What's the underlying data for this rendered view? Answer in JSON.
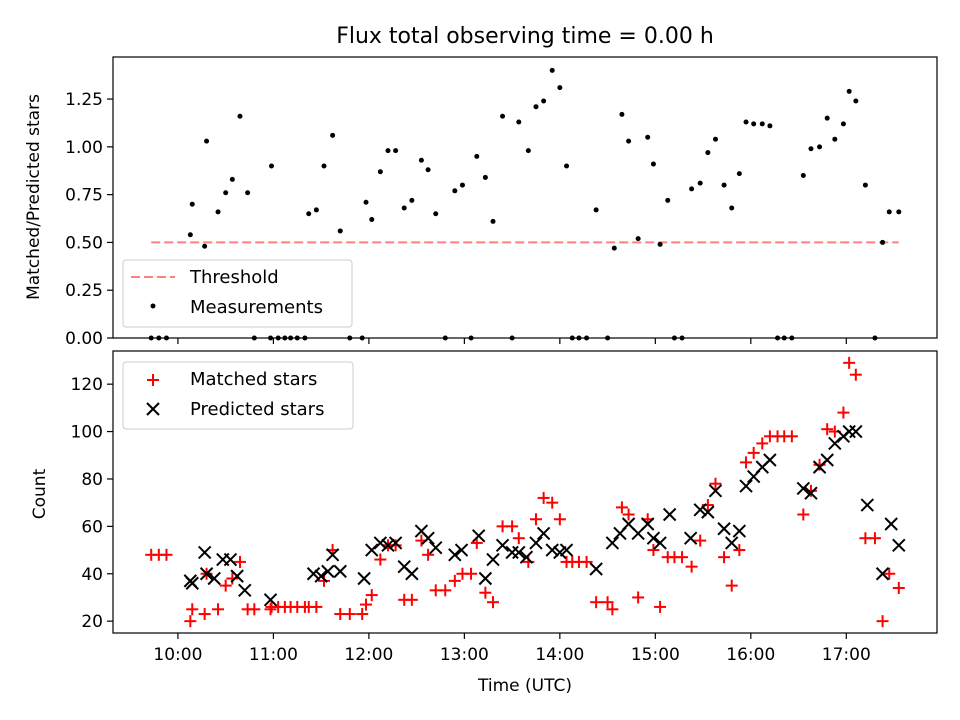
{
  "chart_data": [
    {
      "type": "scatter",
      "title": "Flux total observing time = 0.00 h",
      "ylabel": "Matched/Predicted stars",
      "xlabel": "",
      "x_unit": "hours UTC",
      "xlim": [
        9.32,
        17.95
      ],
      "ylim": [
        0.0,
        1.47
      ],
      "yticks": [
        0.0,
        0.25,
        0.5,
        0.75,
        1.0,
        1.25
      ],
      "ytick_labels": [
        "0.00",
        "0.25",
        "0.50",
        "0.75",
        "1.00",
        "1.25"
      ],
      "grid": false,
      "legend_position": "lower-left",
      "legend": [
        "Threshold",
        "Measurements"
      ],
      "threshold": {
        "name": "Threshold",
        "value": 0.5,
        "x_start": 9.72,
        "x_end": 17.55,
        "color": "#ff7f7f"
      },
      "series": [
        {
          "name": "Measurements",
          "color": "#000000",
          "points": [
            [
              9.72,
              0.0
            ],
            [
              9.8,
              0.0
            ],
            [
              9.88,
              0.0
            ],
            [
              10.13,
              0.54
            ],
            [
              10.15,
              0.7
            ],
            [
              10.28,
              0.48
            ],
            [
              10.3,
              1.03
            ],
            [
              10.42,
              0.66
            ],
            [
              10.5,
              0.76
            ],
            [
              10.57,
              0.83
            ],
            [
              10.65,
              1.16
            ],
            [
              10.73,
              0.76
            ],
            [
              10.8,
              0.0
            ],
            [
              10.97,
              0.0
            ],
            [
              10.98,
              0.9
            ],
            [
              11.05,
              0.0
            ],
            [
              11.12,
              0.0
            ],
            [
              11.18,
              0.0
            ],
            [
              11.25,
              0.0
            ],
            [
              11.33,
              0.0
            ],
            [
              11.37,
              0.65
            ],
            [
              11.45,
              0.67
            ],
            [
              11.53,
              0.9
            ],
            [
              11.62,
              1.06
            ],
            [
              11.7,
              0.56
            ],
            [
              11.8,
              0.0
            ],
            [
              11.93,
              0.0
            ],
            [
              11.97,
              0.71
            ],
            [
              12.03,
              0.62
            ],
            [
              12.12,
              0.87
            ],
            [
              12.2,
              0.98
            ],
            [
              12.28,
              0.98
            ],
            [
              12.37,
              0.68
            ],
            [
              12.45,
              0.72
            ],
            [
              12.55,
              0.93
            ],
            [
              12.62,
              0.88
            ],
            [
              12.7,
              0.65
            ],
            [
              12.8,
              0.0
            ],
            [
              12.9,
              0.77
            ],
            [
              12.98,
              0.8
            ],
            [
              13.07,
              0.0
            ],
            [
              13.13,
              0.95
            ],
            [
              13.22,
              0.84
            ],
            [
              13.3,
              0.61
            ],
            [
              13.4,
              1.16
            ],
            [
              13.5,
              0.0
            ],
            [
              13.57,
              1.13
            ],
            [
              13.67,
              0.98
            ],
            [
              13.75,
              1.21
            ],
            [
              13.83,
              1.24
            ],
            [
              13.92,
              1.4
            ],
            [
              14.0,
              1.31
            ],
            [
              14.07,
              0.9
            ],
            [
              14.13,
              0.0
            ],
            [
              14.2,
              0.0
            ],
            [
              14.28,
              0.0
            ],
            [
              14.38,
              0.67
            ],
            [
              14.5,
              0.0
            ],
            [
              14.57,
              0.47
            ],
            [
              14.65,
              1.17
            ],
            [
              14.72,
              1.03
            ],
            [
              14.82,
              0.52
            ],
            [
              14.92,
              1.05
            ],
            [
              14.98,
              0.91
            ],
            [
              15.05,
              0.49
            ],
            [
              15.13,
              0.72
            ],
            [
              15.2,
              0.0
            ],
            [
              15.28,
              0.0
            ],
            [
              15.38,
              0.78
            ],
            [
              15.47,
              0.81
            ],
            [
              15.55,
              0.97
            ],
            [
              15.63,
              1.04
            ],
            [
              15.72,
              0.8
            ],
            [
              15.8,
              0.68
            ],
            [
              15.88,
              0.86
            ],
            [
              15.95,
              1.13
            ],
            [
              16.03,
              1.12
            ],
            [
              16.12,
              1.12
            ],
            [
              16.2,
              1.11
            ],
            [
              16.28,
              0.0
            ],
            [
              16.35,
              0.0
            ],
            [
              16.43,
              0.0
            ],
            [
              16.55,
              0.85
            ],
            [
              16.63,
              0.99
            ],
            [
              16.72,
              1.0
            ],
            [
              16.8,
              1.15
            ],
            [
              16.88,
              1.04
            ],
            [
              16.97,
              1.12
            ],
            [
              17.03,
              1.29
            ],
            [
              17.1,
              1.24
            ],
            [
              17.2,
              0.8
            ],
            [
              17.3,
              0.0
            ],
            [
              17.38,
              0.5
            ],
            [
              17.45,
              0.66
            ],
            [
              17.55,
              0.66
            ]
          ]
        }
      ]
    },
    {
      "type": "scatter",
      "title": "",
      "xlabel": "Time (UTC)",
      "ylabel": "Count",
      "x_unit": "hours UTC",
      "xlim": [
        9.32,
        17.95
      ],
      "ylim": [
        15,
        134
      ],
      "xticks": [
        10,
        11,
        12,
        13,
        14,
        15,
        16,
        17
      ],
      "xtick_labels": [
        "10:00",
        "11:00",
        "12:00",
        "13:00",
        "14:00",
        "15:00",
        "16:00",
        "17:00"
      ],
      "yticks": [
        20,
        40,
        60,
        80,
        100,
        120
      ],
      "ytick_labels": [
        "20",
        "40",
        "60",
        "80",
        "100",
        "120"
      ],
      "grid": false,
      "legend_position": "upper-left",
      "legend": [
        "Matched stars",
        "Predicted stars"
      ],
      "series": [
        {
          "name": "Matched stars",
          "color": "#ff0000",
          "marker": "plus",
          "points": [
            [
              9.72,
              48
            ],
            [
              9.8,
              48
            ],
            [
              9.88,
              48
            ],
            [
              10.13,
              20
            ],
            [
              10.15,
              25
            ],
            [
              10.28,
              23
            ],
            [
              10.3,
              40
            ],
            [
              10.42,
              25
            ],
            [
              10.5,
              35
            ],
            [
              10.57,
              38
            ],
            [
              10.65,
              45
            ],
            [
              10.73,
              25
            ],
            [
              10.8,
              25
            ],
            [
              10.97,
              25
            ],
            [
              10.98,
              26
            ],
            [
              11.05,
              26
            ],
            [
              11.12,
              26
            ],
            [
              11.18,
              26
            ],
            [
              11.25,
              26
            ],
            [
              11.33,
              26
            ],
            [
              11.37,
              26
            ],
            [
              11.45,
              26
            ],
            [
              11.53,
              37
            ],
            [
              11.62,
              50
            ],
            [
              11.7,
              23
            ],
            [
              11.8,
              23
            ],
            [
              11.93,
              23
            ],
            [
              11.97,
              27
            ],
            [
              12.03,
              31
            ],
            [
              12.12,
              46
            ],
            [
              12.2,
              52
            ],
            [
              12.28,
              52
            ],
            [
              12.37,
              29
            ],
            [
              12.45,
              29
            ],
            [
              12.55,
              54
            ],
            [
              12.62,
              48
            ],
            [
              12.7,
              33
            ],
            [
              12.8,
              33
            ],
            [
              12.9,
              37
            ],
            [
              12.98,
              40
            ],
            [
              13.07,
              40
            ],
            [
              13.13,
              53
            ],
            [
              13.22,
              32
            ],
            [
              13.3,
              28
            ],
            [
              13.4,
              60
            ],
            [
              13.5,
              60
            ],
            [
              13.57,
              55
            ],
            [
              13.67,
              45
            ],
            [
              13.75,
              63
            ],
            [
              13.83,
              72
            ],
            [
              13.92,
              70
            ],
            [
              14.0,
              63
            ],
            [
              14.07,
              45
            ],
            [
              14.13,
              45
            ],
            [
              14.2,
              45
            ],
            [
              14.28,
              45
            ],
            [
              14.38,
              28
            ],
            [
              14.5,
              28
            ],
            [
              14.55,
              25
            ],
            [
              14.65,
              68
            ],
            [
              14.72,
              65
            ],
            [
              14.82,
              30
            ],
            [
              14.92,
              63
            ],
            [
              14.98,
              50
            ],
            [
              15.05,
              26
            ],
            [
              15.13,
              47
            ],
            [
              15.2,
              47
            ],
            [
              15.28,
              47
            ],
            [
              15.38,
              43
            ],
            [
              15.47,
              54
            ],
            [
              15.55,
              69
            ],
            [
              15.63,
              78
            ],
            [
              15.72,
              47
            ],
            [
              15.8,
              35
            ],
            [
              15.88,
              50
            ],
            [
              15.95,
              87
            ],
            [
              16.03,
              91
            ],
            [
              16.12,
              95
            ],
            [
              16.2,
              98
            ],
            [
              16.28,
              98
            ],
            [
              16.35,
              98
            ],
            [
              16.43,
              98
            ],
            [
              16.55,
              65
            ],
            [
              16.63,
              75
            ],
            [
              16.72,
              86
            ],
            [
              16.8,
              101
            ],
            [
              16.88,
              100
            ],
            [
              16.97,
              108
            ],
            [
              17.03,
              129
            ],
            [
              17.1,
              124
            ],
            [
              17.2,
              55
            ],
            [
              17.3,
              55
            ],
            [
              17.38,
              20
            ],
            [
              17.45,
              40
            ],
            [
              17.55,
              34
            ]
          ]
        },
        {
          "name": "Predicted stars",
          "color": "#000000",
          "marker": "x",
          "points": [
            [
              10.13,
              37
            ],
            [
              10.15,
              36
            ],
            [
              10.28,
              49
            ],
            [
              10.3,
              40
            ],
            [
              10.38,
              38
            ],
            [
              10.47,
              46
            ],
            [
              10.55,
              46
            ],
            [
              10.62,
              39
            ],
            [
              10.7,
              33
            ],
            [
              10.97,
              29
            ],
            [
              11.42,
              40
            ],
            [
              11.5,
              39
            ],
            [
              11.57,
              41
            ],
            [
              11.62,
              48
            ],
            [
              11.7,
              41
            ],
            [
              11.95,
              38
            ],
            [
              12.03,
              50
            ],
            [
              12.12,
              53
            ],
            [
              12.2,
              52
            ],
            [
              12.28,
              53
            ],
            [
              12.37,
              43
            ],
            [
              12.45,
              40
            ],
            [
              12.55,
              58
            ],
            [
              12.62,
              55
            ],
            [
              12.7,
              51
            ],
            [
              12.9,
              48
            ],
            [
              12.97,
              50
            ],
            [
              13.15,
              56
            ],
            [
              13.22,
              38
            ],
            [
              13.3,
              46
            ],
            [
              13.4,
              52
            ],
            [
              13.5,
              49
            ],
            [
              13.57,
              49
            ],
            [
              13.65,
              47
            ],
            [
              13.75,
              53
            ],
            [
              13.83,
              57
            ],
            [
              13.92,
              50
            ],
            [
              14.0,
              49
            ],
            [
              14.07,
              50
            ],
            [
              14.38,
              42
            ],
            [
              14.55,
              53
            ],
            [
              14.63,
              57
            ],
            [
              14.72,
              61
            ],
            [
              14.82,
              57
            ],
            [
              14.92,
              61
            ],
            [
              14.98,
              55
            ],
            [
              15.05,
              53
            ],
            [
              15.15,
              65
            ],
            [
              15.37,
              55
            ],
            [
              15.47,
              67
            ],
            [
              15.55,
              66
            ],
            [
              15.63,
              75
            ],
            [
              15.72,
              59
            ],
            [
              15.8,
              53
            ],
            [
              15.88,
              58
            ],
            [
              15.95,
              77
            ],
            [
              16.03,
              81
            ],
            [
              16.12,
              85
            ],
            [
              16.2,
              88
            ],
            [
              16.55,
              76
            ],
            [
              16.63,
              74
            ],
            [
              16.72,
              85
            ],
            [
              16.8,
              88
            ],
            [
              16.88,
              95
            ],
            [
              16.97,
              98
            ],
            [
              17.03,
              100
            ],
            [
              17.1,
              100
            ],
            [
              17.22,
              69
            ],
            [
              17.38,
              40
            ],
            [
              17.47,
              61
            ],
            [
              17.55,
              52
            ]
          ]
        }
      ]
    }
  ]
}
